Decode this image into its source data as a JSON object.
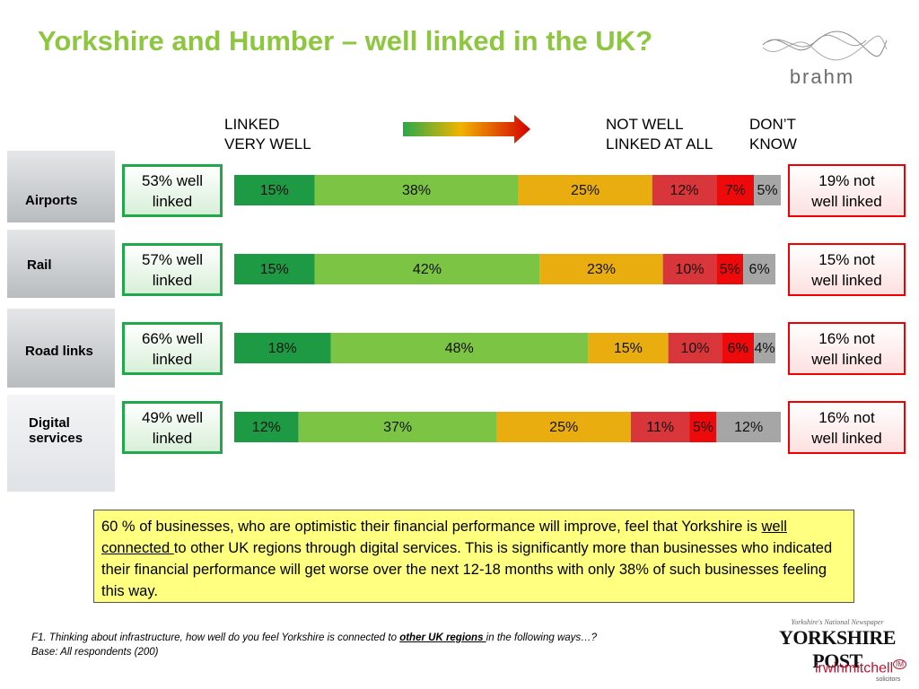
{
  "header": {
    "title": "Yorkshire and Humber – well linked in the UK?"
  },
  "chart_data": {
    "type": "stacked-bar",
    "orientation": "horizontal",
    "categories": [
      "Airports",
      "Rail",
      "Road links",
      "Digital services"
    ],
    "scale_labels": [
      "LINKED\nVERY WELL",
      "NOT WELL\nLINKED AT ALL",
      "DON’T\nKNOW"
    ],
    "xlim": [
      0,
      102
    ],
    "series": [
      {
        "color": "#1e9a45",
        "values": [
          15,
          15,
          18,
          12
        ],
        "value_labels": [
          "15%",
          "15%",
          "18%",
          "12%"
        ]
      },
      {
        "color": "#7cc444",
        "values": [
          38,
          42,
          48,
          37
        ],
        "value_labels": [
          "38%",
          "42%",
          "48%",
          "37%"
        ]
      },
      {
        "color": "#e9ad10",
        "values": [
          25,
          23,
          15,
          25
        ],
        "value_labels": [
          "25%",
          "23%",
          "15%",
          "25%"
        ]
      },
      {
        "color": "#d8363a",
        "values": [
          12,
          10,
          10,
          11
        ],
        "value_labels": [
          "12%",
          "10%",
          "10%",
          "11%"
        ]
      },
      {
        "color": "#ee0a0a",
        "values": [
          7,
          5,
          6,
          5
        ],
        "value_labels": [
          "7%",
          "5%",
          "6%",
          "5%"
        ]
      },
      {
        "color": "#a6a6a6",
        "values": [
          5,
          6,
          4,
          12
        ],
        "value_labels": [
          "5%",
          "6%",
          "4%",
          "12%"
        ]
      }
    ]
  },
  "well_linked": [
    "53% well\nlinked",
    "57% well\nlinked",
    "66% well\nlinked",
    "49% well\nlinked"
  ],
  "not_well_linked": [
    "19% not\nwell linked",
    "15% not\nwell linked",
    "16% not\nwell linked",
    "16% not\nwell linked"
  ],
  "callout": {
    "parts": [
      "60 % of businesses, who are optimistic their financial performance will improve, feel that Yorkshire is ",
      "well connected ",
      "to other UK regions through digital services. This is significantly more than businesses who indicated their financial performance will get worse over the next 12-18 months with only 38% of such businesses feeling this way."
    ]
  },
  "footnote": {
    "question": [
      "F1. Thinking about infrastructure, how well do you feel Yorkshire is connected to ",
      "other UK regions ",
      "in the following ways…?"
    ],
    "base": "Base: All respondents (200)"
  },
  "logos": {
    "brahm": "brahm",
    "paper_tagline": "Yorkshire's National Newspaper",
    "paper": "YORKSHIRE POST",
    "firm": "irwinmitchell",
    "firm_badge": "IM",
    "firm_sub": "solicitors"
  }
}
